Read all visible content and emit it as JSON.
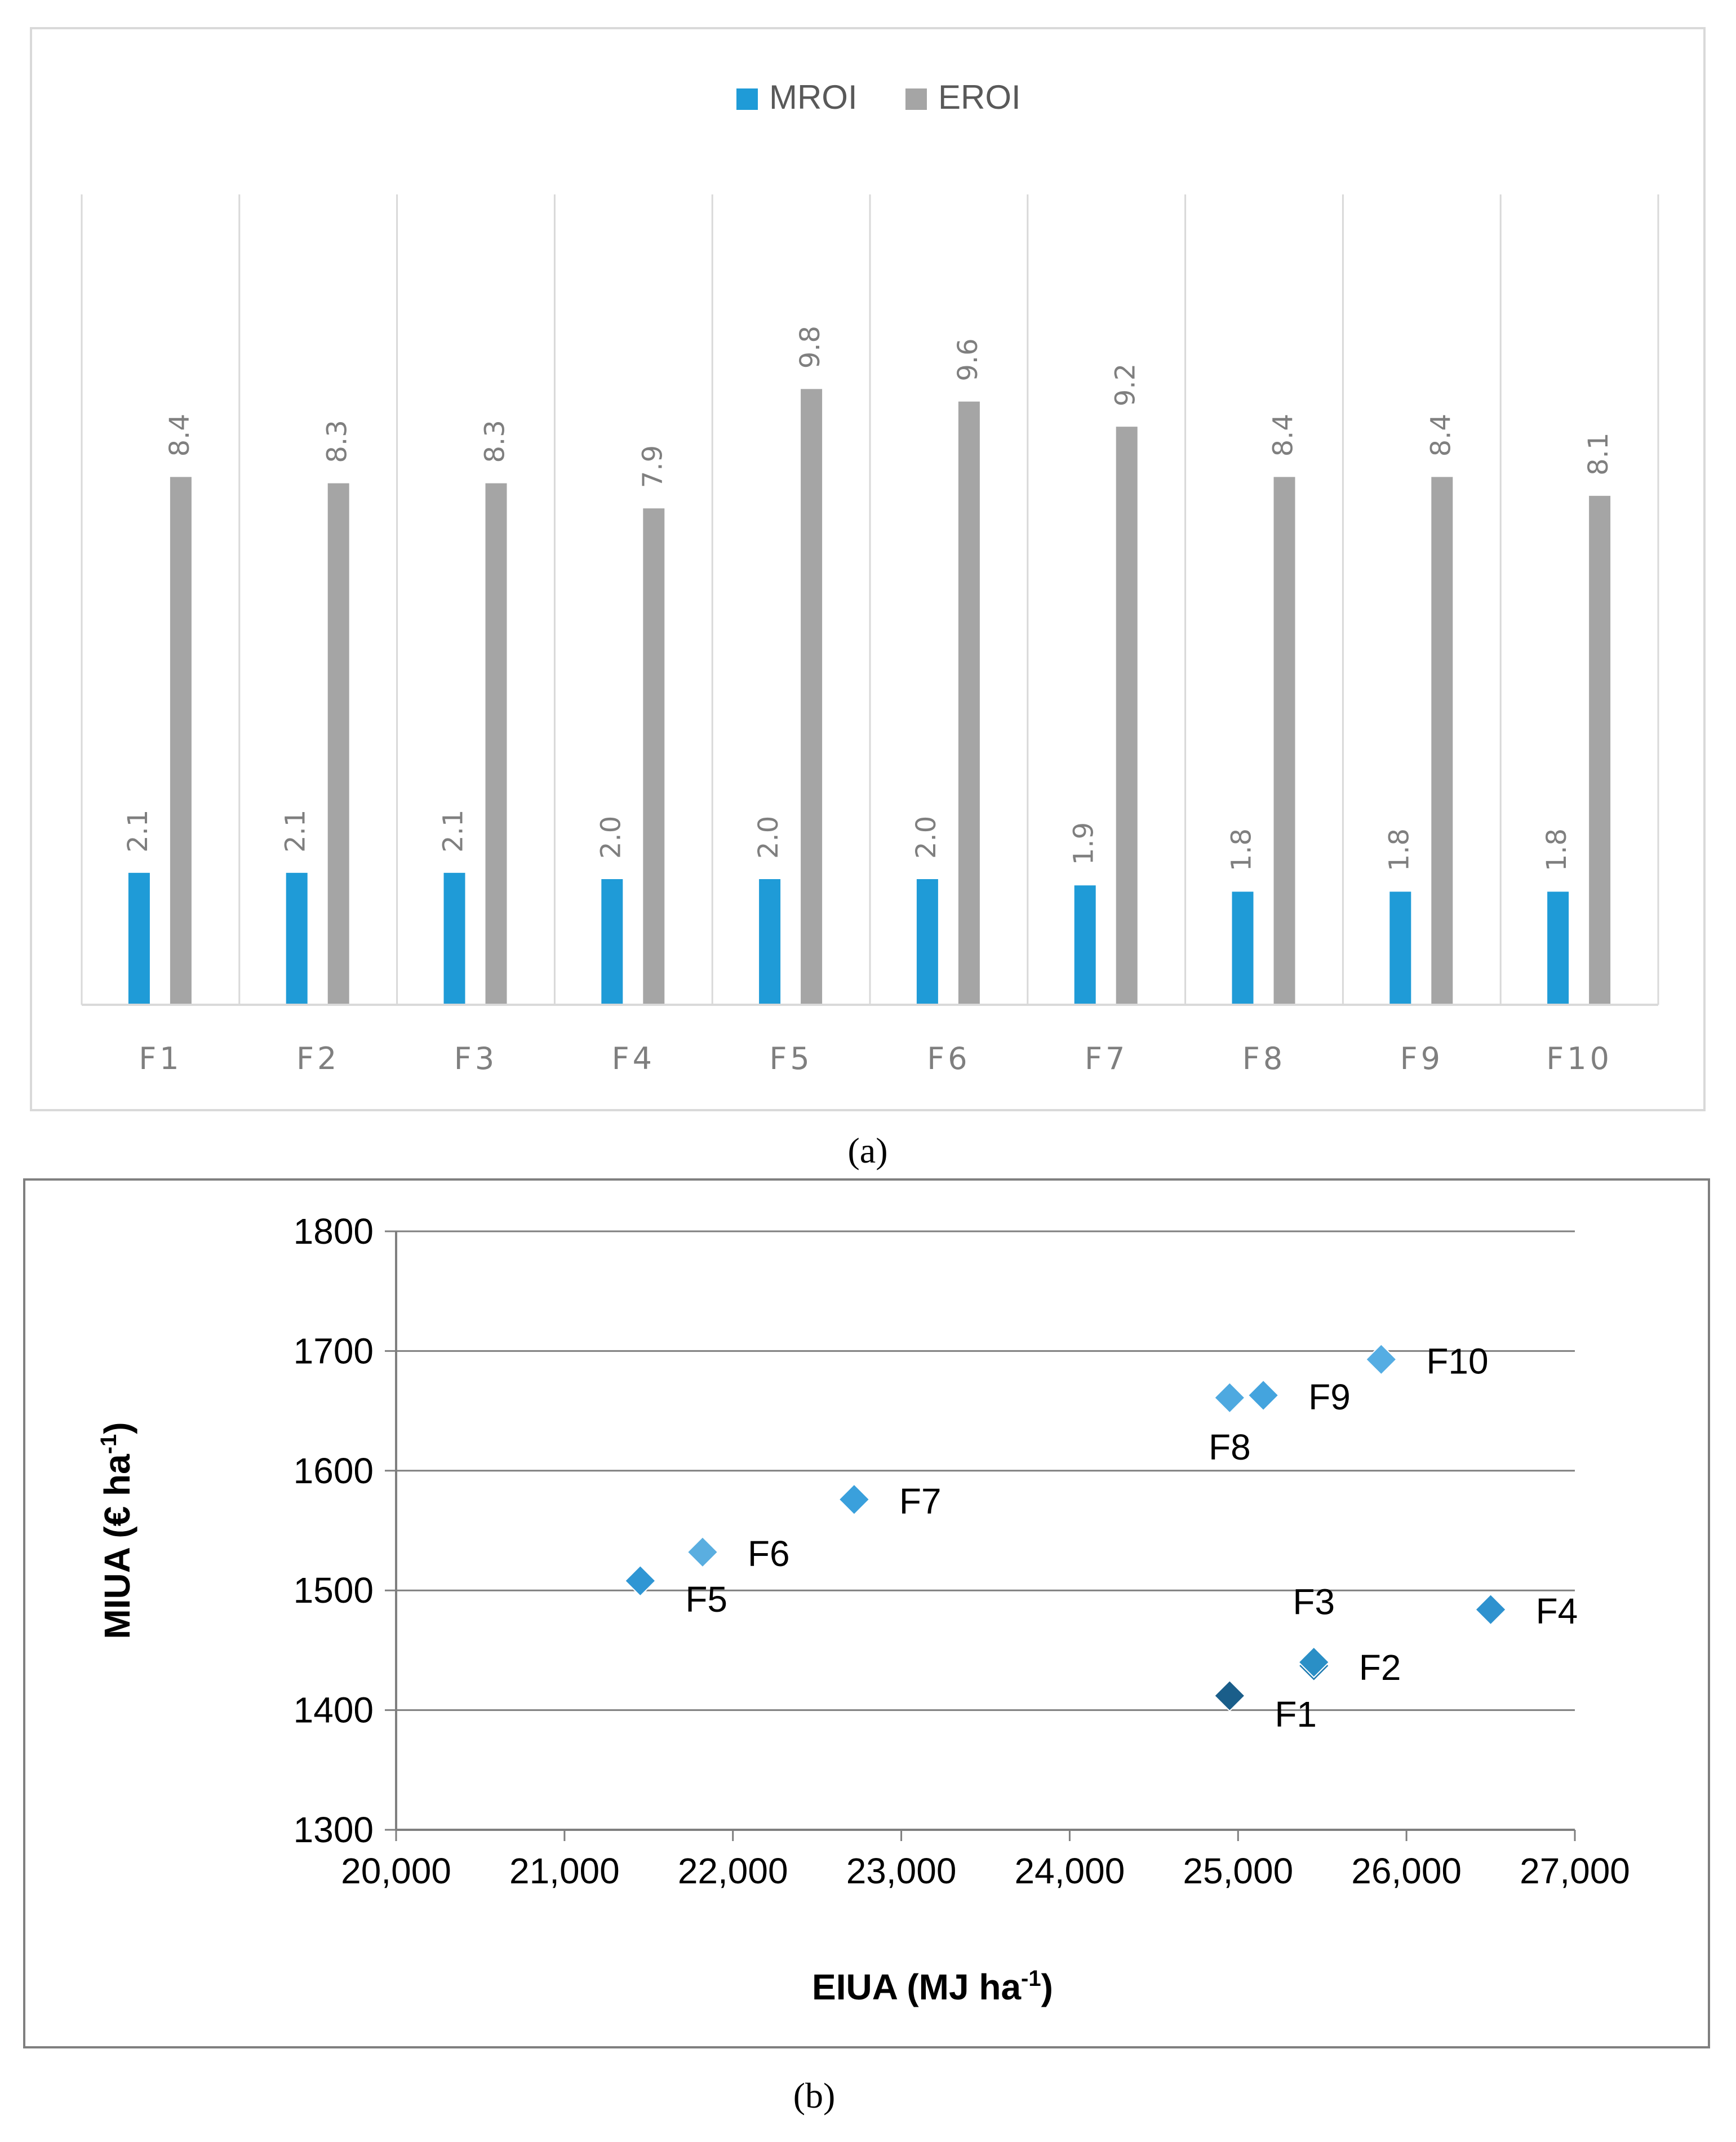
{
  "chart_data": [
    {
      "type": "bar",
      "caption": "(a)",
      "categories": [
        "F1",
        "F2",
        "F3",
        "F4",
        "F5",
        "F6",
        "F7",
        "F8",
        "F9",
        "F10"
      ],
      "series": [
        {
          "name": "MROI",
          "color": "#1f9bd7",
          "values": [
            2.1,
            2.1,
            2.1,
            2.0,
            2.0,
            2.0,
            1.9,
            1.8,
            1.8,
            1.8
          ],
          "labels": [
            "2.1",
            "2.1",
            "2.1",
            "2.0",
            "2.0",
            "2.0",
            "1.9",
            "1.8",
            "1.8",
            "1.8"
          ]
        },
        {
          "name": "EROI",
          "color": "#a5a5a5",
          "values": [
            8.4,
            8.3,
            8.3,
            7.9,
            9.8,
            9.6,
            9.2,
            8.4,
            8.4,
            8.1
          ],
          "labels": [
            "8.4",
            "8.3",
            "8.3",
            "7.9",
            "9.8",
            "9.6",
            "9.2",
            "8.4",
            "8.4",
            "8.1"
          ]
        }
      ],
      "ylim": [
        0,
        11
      ],
      "legend_position": "top-center",
      "grid": "vertical-separators"
    },
    {
      "type": "scatter",
      "caption": "(b)",
      "xlabel": "EIUA (MJ ha",
      "xlabel_sup": "-1",
      "xlabel_tail": ")",
      "ylabel": "MIUA (€ ha",
      "ylabel_sup": "-1",
      "ylabel_tail": ")",
      "xlim": [
        20000,
        27000
      ],
      "ylim": [
        1300,
        1800
      ],
      "xticks": [
        20000,
        21000,
        22000,
        23000,
        24000,
        25000,
        26000,
        27000
      ],
      "xtick_labels": [
        "20,000",
        "21,000",
        "22,000",
        "23,000",
        "24,000",
        "25,000",
        "26,000",
        "27,000"
      ],
      "yticks": [
        1300,
        1400,
        1500,
        1600,
        1700,
        1800
      ],
      "ytick_labels": [
        "1300",
        "1400",
        "1500",
        "1600",
        "1700",
        "1800"
      ],
      "points": [
        {
          "label": "F1",
          "x": 24950,
          "y": 1412,
          "color": "#1a5e8a",
          "label_pos": "below-right"
        },
        {
          "label": "F2",
          "x": 25450,
          "y": 1437,
          "color": "#1f7bb0",
          "label_pos": "right"
        },
        {
          "label": "F3",
          "x": 25450,
          "y": 1440,
          "color": "#2a8fc6",
          "label_pos": "above"
        },
        {
          "label": "F4",
          "x": 26500,
          "y": 1484,
          "color": "#2e92cf",
          "label_pos": "right"
        },
        {
          "label": "F5",
          "x": 21450,
          "y": 1508,
          "color": "#2f96d4",
          "label_pos": "below-right"
        },
        {
          "label": "F6",
          "x": 21820,
          "y": 1532,
          "color": "#5aaee0",
          "label_pos": "right"
        },
        {
          "label": "F7",
          "x": 22720,
          "y": 1576,
          "color": "#3aa0dc",
          "label_pos": "right"
        },
        {
          "label": "F8",
          "x": 24950,
          "y": 1661,
          "color": "#4ea9e0",
          "label_pos": "below"
        },
        {
          "label": "F9",
          "x": 25150,
          "y": 1663,
          "color": "#44a4de",
          "label_pos": "right"
        },
        {
          "label": "F10",
          "x": 25850,
          "y": 1693,
          "color": "#55ade3",
          "label_pos": "right"
        }
      ]
    }
  ]
}
